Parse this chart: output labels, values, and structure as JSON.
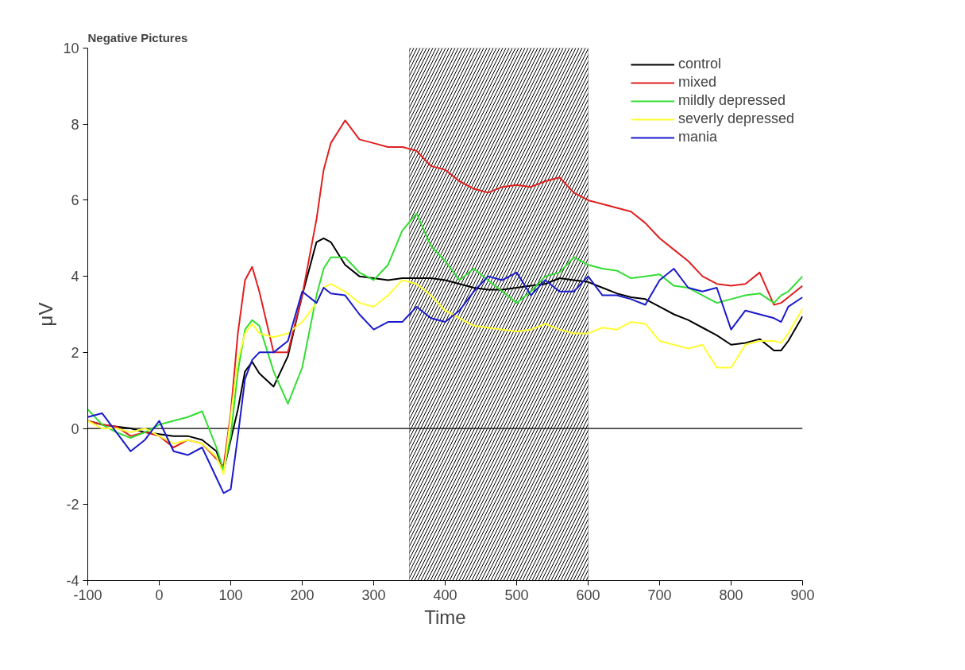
{
  "chart_data": {
    "type": "line",
    "title": "Negative Pictures",
    "xlabel": "Time",
    "ylabel": "μV",
    "x": [
      -100,
      -80,
      -60,
      -40,
      -20,
      0,
      20,
      40,
      60,
      80,
      90,
      100,
      110,
      120,
      130,
      140,
      160,
      180,
      200,
      220,
      230,
      240,
      260,
      280,
      300,
      320,
      340,
      360,
      380,
      400,
      420,
      440,
      460,
      480,
      500,
      520,
      540,
      560,
      580,
      600,
      620,
      640,
      660,
      680,
      700,
      720,
      740,
      760,
      780,
      800,
      820,
      840,
      860,
      870,
      880,
      900
    ],
    "series": [
      {
        "name": "control",
        "color": "#000000",
        "values": [
          0.2,
          0.1,
          0.05,
          0,
          -0.1,
          -0.15,
          -0.2,
          -0.2,
          -0.3,
          -0.6,
          -1.1,
          -0.3,
          0.5,
          1.5,
          1.75,
          1.45,
          1.1,
          1.9,
          3.5,
          4.9,
          5.0,
          4.9,
          4.3,
          4.0,
          3.95,
          3.9,
          3.95,
          3.95,
          3.95,
          3.9,
          3.8,
          3.7,
          3.65,
          3.65,
          3.7,
          3.75,
          3.8,
          3.95,
          3.9,
          3.85,
          3.7,
          3.55,
          3.45,
          3.4,
          3.2,
          3.0,
          2.85,
          2.65,
          2.45,
          2.2,
          2.25,
          2.35,
          2.05,
          2.05,
          2.3,
          2.95
        ]
      },
      {
        "name": "mixed",
        "color": "#e02020",
        "values": [
          0.2,
          0.1,
          0.05,
          -0.2,
          -0.1,
          -0.2,
          -0.5,
          -0.3,
          -0.4,
          -0.8,
          -1.0,
          0.4,
          2.5,
          3.9,
          4.25,
          3.6,
          2.0,
          2.0,
          3.5,
          5.5,
          6.8,
          7.5,
          8.1,
          7.6,
          7.5,
          7.4,
          7.4,
          7.3,
          6.9,
          6.8,
          6.5,
          6.3,
          6.2,
          6.35,
          6.4,
          6.35,
          6.5,
          6.6,
          6.2,
          6.0,
          5.9,
          5.8,
          5.7,
          5.4,
          5.0,
          4.7,
          4.4,
          4.0,
          3.8,
          3.75,
          3.8,
          4.1,
          3.25,
          3.3,
          3.45,
          3.75
        ]
      },
      {
        "name": "mildly depressed",
        "color": "#33dd33",
        "values": [
          0.5,
          0.1,
          -0.1,
          -0.25,
          -0.1,
          0.1,
          0.2,
          0.3,
          0.45,
          -0.5,
          -1.1,
          -0.2,
          1.5,
          2.6,
          2.85,
          2.7,
          1.5,
          0.65,
          1.6,
          3.5,
          4.2,
          4.5,
          4.5,
          4.1,
          3.9,
          4.3,
          5.2,
          5.65,
          4.8,
          4.4,
          3.9,
          4.2,
          3.9,
          3.6,
          3.3,
          3.6,
          4.0,
          4.1,
          4.5,
          4.3,
          4.2,
          4.15,
          3.95,
          4.0,
          4.05,
          3.75,
          3.7,
          3.5,
          3.3,
          3.4,
          3.5,
          3.55,
          3.3,
          3.5,
          3.6,
          4.0
        ]
      },
      {
        "name": "severly depressed",
        "color": "#ffff33",
        "values": [
          0.2,
          0.0,
          0.0,
          -0.1,
          0.0,
          -0.2,
          -0.4,
          -0.3,
          -0.4,
          -0.75,
          -1.2,
          0.3,
          1.8,
          2.5,
          2.75,
          2.5,
          2.4,
          2.5,
          2.8,
          3.3,
          3.7,
          3.8,
          3.6,
          3.3,
          3.2,
          3.5,
          3.9,
          3.8,
          3.5,
          3.1,
          2.9,
          2.7,
          2.65,
          2.6,
          2.55,
          2.6,
          2.75,
          2.6,
          2.5,
          2.5,
          2.65,
          2.6,
          2.8,
          2.75,
          2.3,
          2.2,
          2.1,
          2.2,
          1.6,
          1.6,
          2.2,
          2.3,
          2.3,
          2.25,
          2.5,
          3.15
        ]
      },
      {
        "name": "mania",
        "color": "#1a1acc",
        "values": [
          0.3,
          0.4,
          -0.1,
          -0.6,
          -0.3,
          0.2,
          -0.6,
          -0.7,
          -0.5,
          -1.3,
          -1.7,
          -1.6,
          -0.2,
          1.3,
          1.8,
          2.0,
          2.0,
          2.3,
          3.6,
          3.3,
          3.7,
          3.55,
          3.5,
          3.0,
          2.6,
          2.8,
          2.8,
          3.2,
          2.9,
          2.8,
          3.1,
          3.6,
          4.0,
          3.9,
          4.1,
          3.5,
          3.9,
          3.6,
          3.6,
          4.0,
          3.5,
          3.5,
          3.4,
          3.25,
          3.9,
          4.2,
          3.7,
          3.6,
          3.7,
          2.6,
          3.1,
          3.0,
          2.9,
          2.8,
          3.2,
          3.45
        ]
      }
    ],
    "xlim": [
      -100,
      900
    ],
    "ylim": [
      -4,
      10
    ],
    "xticks": [
      -100,
      0,
      100,
      200,
      300,
      400,
      500,
      600,
      700,
      800,
      900
    ],
    "yticks": [
      -4,
      -2,
      0,
      2,
      4,
      6,
      8,
      10
    ],
    "ref_lines": [
      {
        "axis": "y",
        "value": 0,
        "color": "#000000"
      }
    ],
    "bands": [
      {
        "axis": "x",
        "from": 350,
        "to": 600,
        "color": "#000000"
      }
    ],
    "grid": false,
    "legend": "top right",
    "line_style": "solid",
    "marker": "none"
  }
}
